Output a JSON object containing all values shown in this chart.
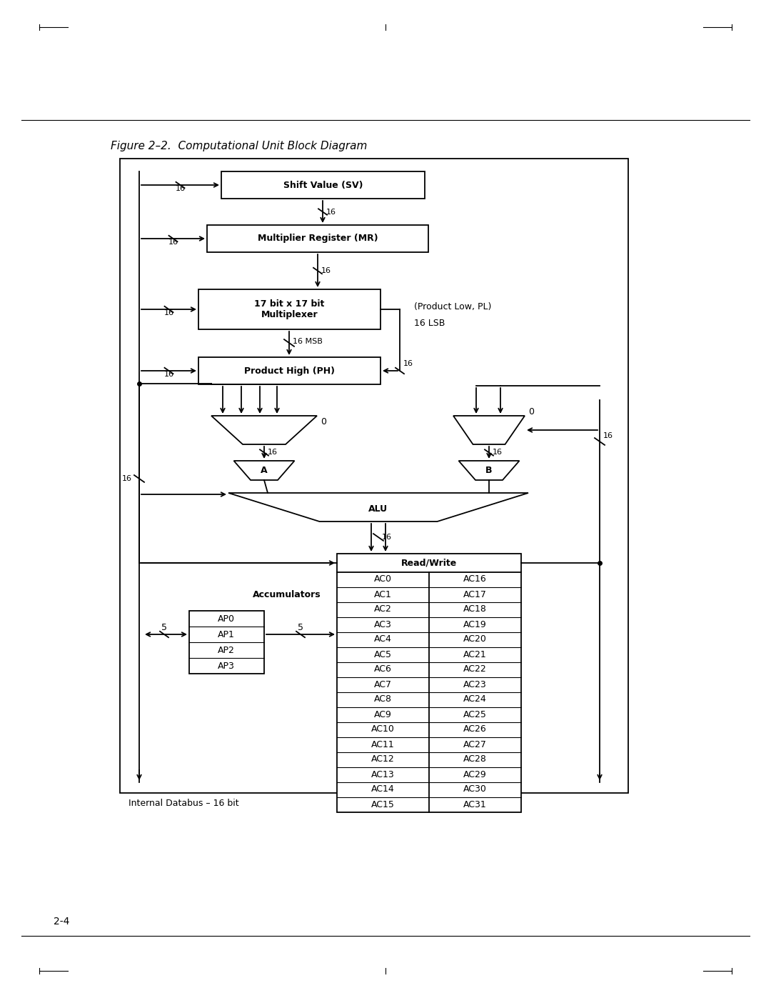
{
  "title": "Figure 2–2.  Computational Unit Block Diagram",
  "page_label": "2-4",
  "bg_color": "#ffffff",
  "accumulator_rows_left": [
    "AC0",
    "AC1",
    "AC2",
    "AC3",
    "AC4",
    "AC5",
    "AC6",
    "AC7",
    "AC8",
    "AC9",
    "AC10",
    "AC11",
    "AC12",
    "AC13",
    "AC14",
    "AC15"
  ],
  "accumulator_rows_right": [
    "AC16",
    "AC17",
    "AC18",
    "AC19",
    "AC20",
    "AC21",
    "AC22",
    "AC23",
    "AC24",
    "AC25",
    "AC26",
    "AC27",
    "AC28",
    "AC29",
    "AC30",
    "AC31"
  ],
  "ap_rows": [
    "AP0",
    "AP1",
    "AP2",
    "AP3"
  ]
}
